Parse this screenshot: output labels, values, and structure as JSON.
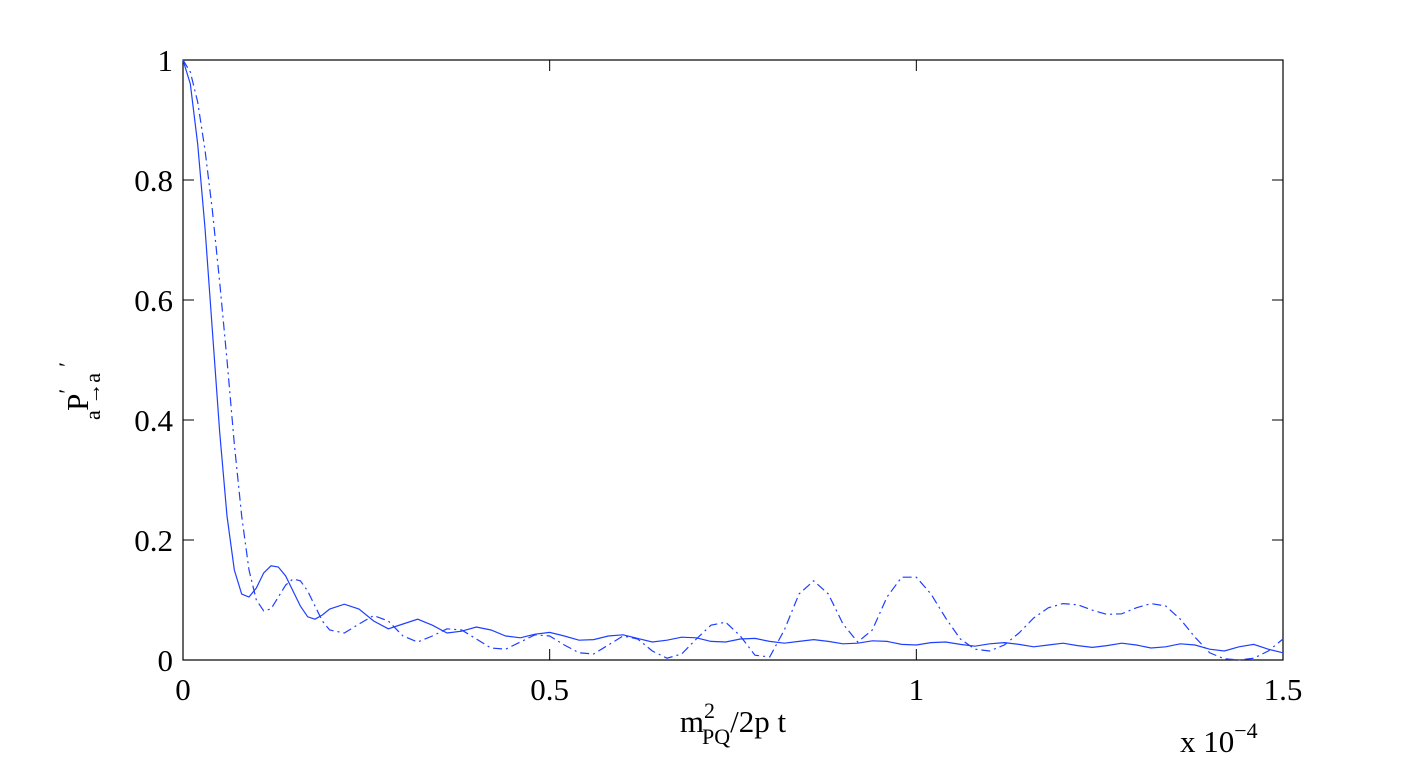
{
  "chart_data": {
    "type": "line",
    "xlabel": {
      "main": "m",
      "sup": "2",
      "sub": "PQ",
      "rest": "/2p t"
    },
    "ylabel": {
      "main": "P",
      "sup": "′    ′",
      "sub": "a →a"
    },
    "x_multiplier": {
      "base": "x 10",
      "exponent": "−4"
    },
    "xlim": [
      0,
      1.5
    ],
    "xticks": [
      0,
      0.5,
      1,
      1.5
    ],
    "ylim": [
      0,
      1
    ],
    "yticks": [
      0,
      0.2,
      0.4,
      0.6,
      0.8,
      1
    ],
    "grid": false,
    "x": [
      0,
      0.01,
      0.02,
      0.03,
      0.04,
      0.05,
      0.06,
      0.07,
      0.08,
      0.09,
      0.1,
      0.11,
      0.12,
      0.13,
      0.14,
      0.15,
      0.16,
      0.17,
      0.18,
      0.19,
      0.2,
      0.22,
      0.24,
      0.26,
      0.28,
      0.3,
      0.32,
      0.34,
      0.36,
      0.38,
      0.4,
      0.42,
      0.44,
      0.46,
      0.48,
      0.5,
      0.52,
      0.54,
      0.56,
      0.58,
      0.6,
      0.62,
      0.64,
      0.66,
      0.68,
      0.7,
      0.72,
      0.74,
      0.76,
      0.78,
      0.8,
      0.82,
      0.84,
      0.86,
      0.88,
      0.9,
      0.92,
      0.94,
      0.96,
      0.98,
      1,
      1.02,
      1.04,
      1.06,
      1.08,
      1.1,
      1.12,
      1.14,
      1.16,
      1.18,
      1.2,
      1.22,
      1.24,
      1.26,
      1.28,
      1.3,
      1.32,
      1.34,
      1.36,
      1.38,
      1.4,
      1.42,
      1.44,
      1.46,
      1.48,
      1.5
    ],
    "series": [
      {
        "color": "#1f3fff",
        "dash": "solid",
        "values": [
          1,
          0.96,
          0.86,
          0.72,
          0.55,
          0.38,
          0.24,
          0.15,
          0.11,
          0.105,
          0.12,
          0.145,
          0.157,
          0.155,
          0.14,
          0.115,
          0.09,
          0.072,
          0.068,
          0.075,
          0.085,
          0.093,
          0.085,
          0.065,
          0.052,
          0.06,
          0.068,
          0.058,
          0.045,
          0.048,
          0.055,
          0.05,
          0.04,
          0.037,
          0.043,
          0.046,
          0.04,
          0.033,
          0.034,
          0.04,
          0.042,
          0.036,
          0.03,
          0.033,
          0.038,
          0.037,
          0.031,
          0.03,
          0.035,
          0.036,
          0.031,
          0.028,
          0.031,
          0.034,
          0.031,
          0.027,
          0.028,
          0.032,
          0.031,
          0.026,
          0.025,
          0.029,
          0.03,
          0.026,
          0.023,
          0.027,
          0.029,
          0.026,
          0.022,
          0.025,
          0.028,
          0.024,
          0.021,
          0.024,
          0.028,
          0.025,
          0.02,
          0.022,
          0.027,
          0.025,
          0.018,
          0.015,
          0.022,
          0.026,
          0.018,
          0.012
        ]
      },
      {
        "color": "#1f3fff",
        "dash": "dashdot",
        "values": [
          1,
          0.98,
          0.93,
          0.85,
          0.75,
          0.63,
          0.5,
          0.36,
          0.24,
          0.15,
          0.1,
          0.082,
          0.085,
          0.105,
          0.125,
          0.135,
          0.132,
          0.115,
          0.09,
          0.065,
          0.05,
          0.045,
          0.06,
          0.074,
          0.065,
          0.04,
          0.03,
          0.04,
          0.052,
          0.05,
          0.035,
          0.02,
          0.018,
          0.03,
          0.042,
          0.04,
          0.025,
          0.012,
          0.01,
          0.025,
          0.04,
          0.035,
          0.015,
          0.003,
          0.01,
          0.035,
          0.058,
          0.063,
          0.04,
          0.008,
          0.005,
          0.05,
          0.11,
          0.132,
          0.11,
          0.06,
          0.03,
          0.05,
          0.105,
          0.138,
          0.138,
          0.11,
          0.07,
          0.035,
          0.018,
          0.015,
          0.025,
          0.045,
          0.07,
          0.087,
          0.094,
          0.092,
          0.083,
          0.076,
          0.077,
          0.087,
          0.094,
          0.09,
          0.068,
          0.038,
          0.012,
          0.002,
          0,
          0.003,
          0.015,
          0.035
        ]
      }
    ]
  }
}
